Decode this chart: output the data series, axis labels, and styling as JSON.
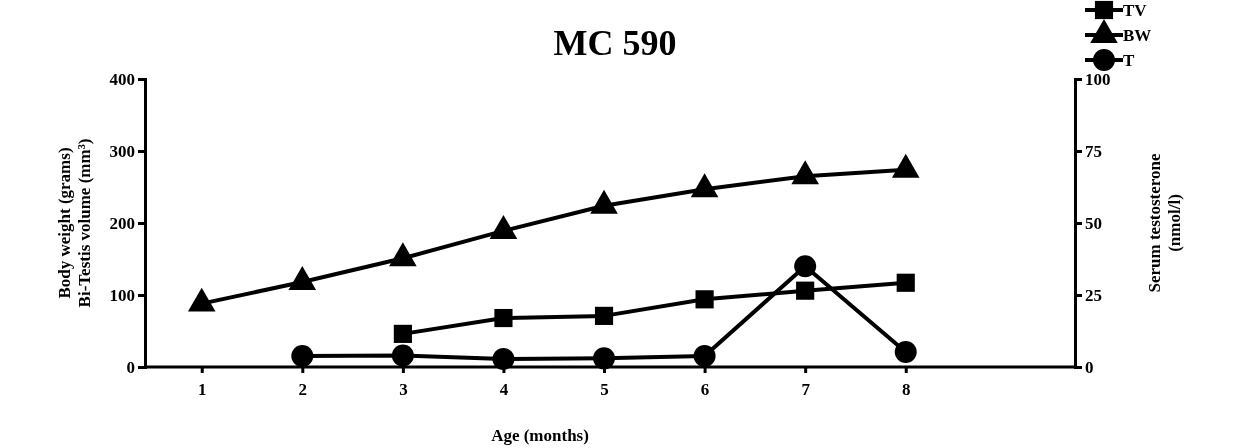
{
  "chart_data": {
    "type": "line",
    "title": "MC 590",
    "xlabel": "Age (months)",
    "ylabel": "Body weight (grams)\nBi-Testis volume (mm³)",
    "y2label": "Serum testosterone\n(nmol/l)",
    "categories": [
      "1",
      "2",
      "3",
      "4",
      "5",
      "6",
      "7",
      "8"
    ],
    "ylim": [
      0,
      400
    ],
    "yticks": [
      0,
      100,
      200,
      300,
      400
    ],
    "y2lim": [
      0,
      100
    ],
    "y2ticks": [
      0,
      25,
      50,
      75,
      100
    ],
    "legend": "top right",
    "grid": false,
    "line_style": "solid",
    "series": [
      {
        "name": "TV",
        "color": "#000000",
        "marker": "square",
        "values": [
          null,
          null,
          46,
          68,
          71,
          94,
          106,
          117
        ]
      },
      {
        "name": "BW",
        "color": "#000000",
        "marker": "triangle",
        "values": [
          88,
          118,
          151,
          189,
          224,
          247,
          265,
          274
        ]
      },
      {
        "name": "T",
        "color": "#000000",
        "marker": "circle",
        "axis": "y2",
        "values": [
          null,
          3.8,
          4,
          2.8,
          3,
          3.8,
          35,
          5.2
        ]
      }
    ]
  }
}
